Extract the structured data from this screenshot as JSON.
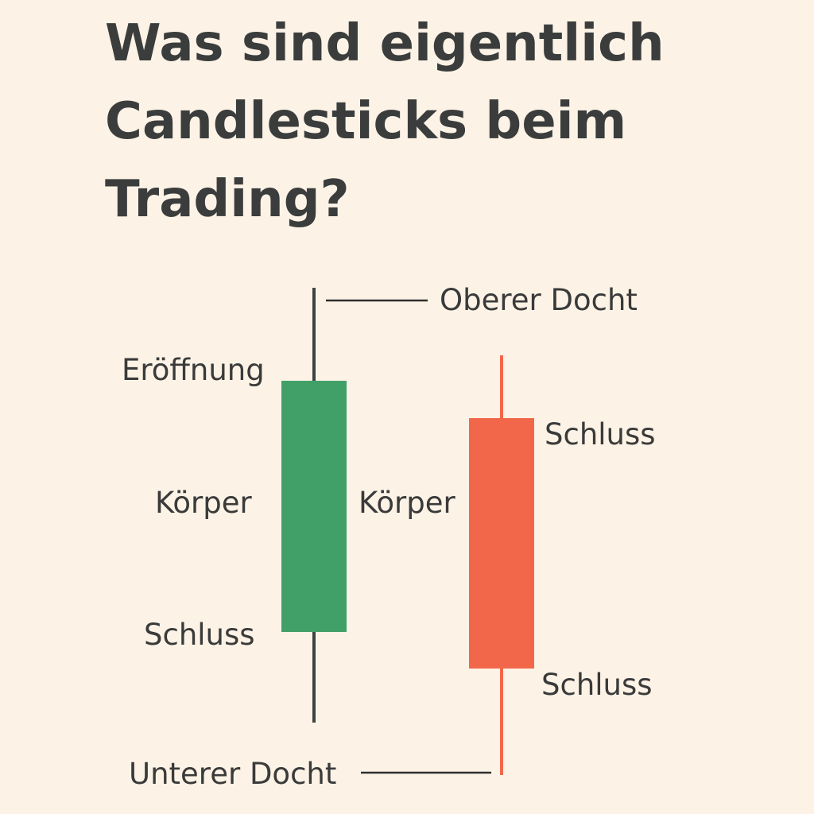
{
  "title": {
    "line1": "Was sind eigentlich",
    "line2": "Candlesticks beim",
    "line3": "Trading?"
  },
  "labels": {
    "upper_wick": "Oberer Docht",
    "open": "Eröffnung",
    "body_green": "Körper",
    "body_red": "Körper",
    "close_green": "Schluss",
    "close_red_top": "Schluss",
    "close_red_bottom": "Schluss",
    "lower_wick": "Unterer Docht"
  },
  "colors": {
    "background": "#FCF3E6",
    "text": "#3A3A3A",
    "bullish": "#41A068",
    "bearish": "#F2674A",
    "wick_dark": "#3E4242"
  }
}
